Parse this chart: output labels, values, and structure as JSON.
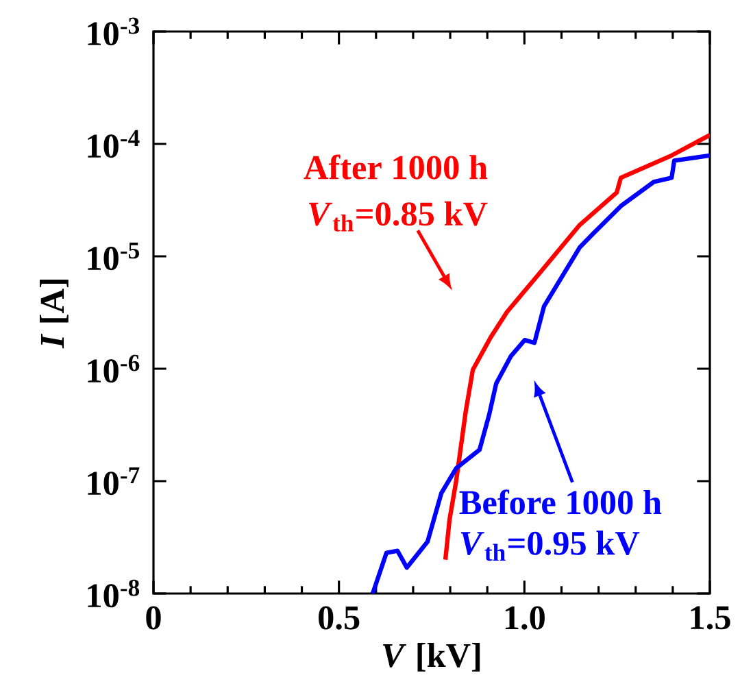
{
  "chart_data": {
    "type": "line",
    "xlabel": "*V* [kV]",
    "ylabel": "*I* [A]",
    "log": "y",
    "marker": "none",
    "line_style": "solid",
    "xlim": [
      0,
      1.5
    ],
    "xticks": [
      0,
      0.5,
      {
        "value": 1,
        "label": "1.0"
      },
      1.5
    ],
    "ylim": [
      1e-08,
      0.001
    ],
    "yticks": [
      {
        "value": 1e-08,
        "label": "10$^{-8}$"
      },
      {
        "value": 1e-07,
        "label": "10$^{-7}$"
      },
      {
        "value": 1e-06,
        "label": "10$^{-6}$"
      },
      {
        "value": 1e-05,
        "label": "10$^{-5}$"
      },
      {
        "value": 0.0001,
        "label": "10$^{-4}$"
      },
      {
        "value": 0.001,
        "label": "10$^{-3}$"
      }
    ],
    "series": [
      {
        "color": "#ff0000",
        "x": [
          0.787,
          0.798,
          0.816,
          0.842,
          0.861,
          0.909,
          0.953,
          1.038,
          1.149,
          1.249,
          1.26,
          1.397,
          1.5
        ],
        "values": [
          2e-08,
          4.5e-08,
          1e-07,
          4.2e-07,
          9.8e-07,
          1.9e-06,
          3.2e-06,
          6.9e-06,
          1.9e-05,
          3.7e-05,
          5e-05,
          7.9e-05,
          0.00012
        ]
      },
      {
        "color": "#0000ff",
        "x": [
          0.591,
          0.628,
          0.658,
          0.683,
          0.739,
          0.776,
          0.816,
          0.879,
          0.905,
          0.924,
          0.964,
          1.001,
          1.027,
          1.053,
          1.149,
          1.186,
          1.26,
          1.349,
          1.397,
          1.404,
          1.5
        ],
        "values": [
          1e-08,
          2.3e-08,
          2.4e-08,
          1.7e-08,
          2.9e-08,
          7.8e-08,
          1.3e-07,
          1.9e-07,
          3.9e-07,
          7.4e-07,
          1.3e-06,
          1.8e-06,
          1.7e-06,
          3.6e-06,
          1.2e-05,
          1.6e-05,
          2.8e-05,
          4.6e-05,
          5e-05,
          7.1e-05,
          7.9e-05
        ]
      }
    ],
    "annotations": [
      "After 1000 h",
      "*V*$_{th}$=0.85 kV",
      "Before 1000 h",
      "*V*$_{th}$=0.95 kV"
    ]
  }
}
